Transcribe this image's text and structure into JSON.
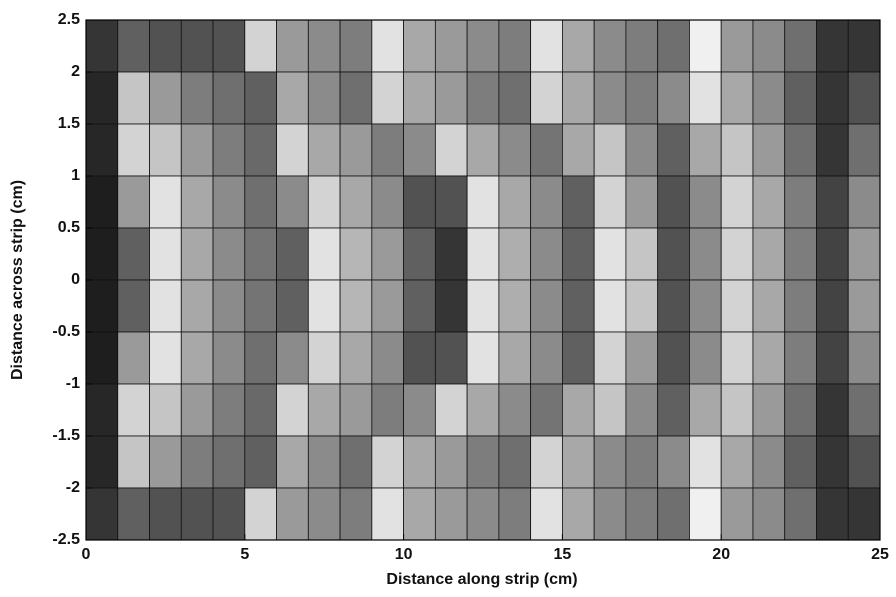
{
  "chart_data": {
    "type": "heatmap",
    "xlabel": "Distance along strip (cm)",
    "ylabel": "Distance across strip (cm)",
    "colormap": "gray",
    "grid": true,
    "xlim": [
      0,
      25
    ],
    "ylim": [
      -2.5,
      2.5
    ],
    "xticks": [
      0,
      5,
      10,
      15,
      20,
      25
    ],
    "yticks": [
      -2.5,
      -2,
      -1.5,
      -1,
      -0.5,
      0,
      0.5,
      1,
      1.5,
      2,
      2.5
    ],
    "x": [
      0.5,
      1.5,
      2.5,
      3.5,
      4.5,
      5.5,
      6.5,
      7.5,
      8.5,
      9.5,
      10.5,
      11.5,
      12.5,
      13.5,
      14.5,
      15.5,
      16.5,
      17.5,
      18.5,
      19.5,
      20.5,
      21.5,
      22.5,
      23.5,
      24.5
    ],
    "y": [
      2.25,
      1.75,
      1.25,
      0.75,
      0.25,
      -0.25,
      -0.75,
      -1.25,
      -1.75,
      -2.25
    ],
    "z": [
      [
        0.2,
        0.35,
        0.3,
        0.3,
        0.3,
        0.75,
        0.55,
        0.5,
        0.45,
        0.8,
        0.6,
        0.55,
        0.5,
        0.45,
        0.8,
        0.6,
        0.5,
        0.45,
        0.4,
        0.85,
        0.55,
        0.5,
        0.4,
        0.2,
        0.2
      ],
      [
        0.15,
        0.7,
        0.55,
        0.45,
        0.4,
        0.35,
        0.6,
        0.5,
        0.4,
        0.75,
        0.6,
        0.55,
        0.45,
        0.4,
        0.75,
        0.6,
        0.5,
        0.45,
        0.5,
        0.8,
        0.6,
        0.5,
        0.35,
        0.2,
        0.3
      ],
      [
        0.15,
        0.75,
        0.7,
        0.55,
        0.45,
        0.38,
        0.75,
        0.6,
        0.55,
        0.45,
        0.5,
        0.75,
        0.6,
        0.5,
        0.42,
        0.6,
        0.7,
        0.5,
        0.35,
        0.6,
        0.7,
        0.55,
        0.4,
        0.2,
        0.4
      ],
      [
        0.12,
        0.55,
        0.8,
        0.6,
        0.5,
        0.4,
        0.5,
        0.75,
        0.6,
        0.5,
        0.3,
        0.3,
        0.8,
        0.6,
        0.5,
        0.35,
        0.75,
        0.55,
        0.3,
        0.5,
        0.75,
        0.6,
        0.45,
        0.25,
        0.5
      ],
      [
        0.12,
        0.35,
        0.8,
        0.6,
        0.5,
        0.42,
        0.35,
        0.8,
        0.65,
        0.55,
        0.35,
        0.2,
        0.8,
        0.62,
        0.5,
        0.35,
        0.8,
        0.7,
        0.3,
        0.5,
        0.75,
        0.6,
        0.45,
        0.25,
        0.55
      ],
      [
        0.12,
        0.35,
        0.8,
        0.6,
        0.5,
        0.42,
        0.35,
        0.8,
        0.65,
        0.55,
        0.35,
        0.2,
        0.8,
        0.62,
        0.5,
        0.35,
        0.8,
        0.7,
        0.3,
        0.5,
        0.75,
        0.6,
        0.45,
        0.25,
        0.55
      ],
      [
        0.12,
        0.55,
        0.8,
        0.6,
        0.5,
        0.4,
        0.5,
        0.75,
        0.6,
        0.5,
        0.3,
        0.3,
        0.8,
        0.6,
        0.5,
        0.35,
        0.75,
        0.55,
        0.3,
        0.5,
        0.75,
        0.6,
        0.45,
        0.25,
        0.5
      ],
      [
        0.15,
        0.75,
        0.7,
        0.55,
        0.45,
        0.38,
        0.75,
        0.6,
        0.55,
        0.45,
        0.5,
        0.75,
        0.6,
        0.5,
        0.42,
        0.6,
        0.7,
        0.5,
        0.35,
        0.6,
        0.7,
        0.55,
        0.4,
        0.2,
        0.4
      ],
      [
        0.15,
        0.7,
        0.55,
        0.45,
        0.4,
        0.35,
        0.6,
        0.5,
        0.4,
        0.75,
        0.6,
        0.55,
        0.45,
        0.4,
        0.75,
        0.6,
        0.5,
        0.45,
        0.5,
        0.8,
        0.6,
        0.5,
        0.35,
        0.2,
        0.3
      ],
      [
        0.2,
        0.35,
        0.3,
        0.3,
        0.3,
        0.75,
        0.55,
        0.5,
        0.45,
        0.8,
        0.6,
        0.55,
        0.5,
        0.45,
        0.8,
        0.6,
        0.5,
        0.45,
        0.4,
        0.85,
        0.55,
        0.5,
        0.4,
        0.2,
        0.2
      ]
    ]
  }
}
